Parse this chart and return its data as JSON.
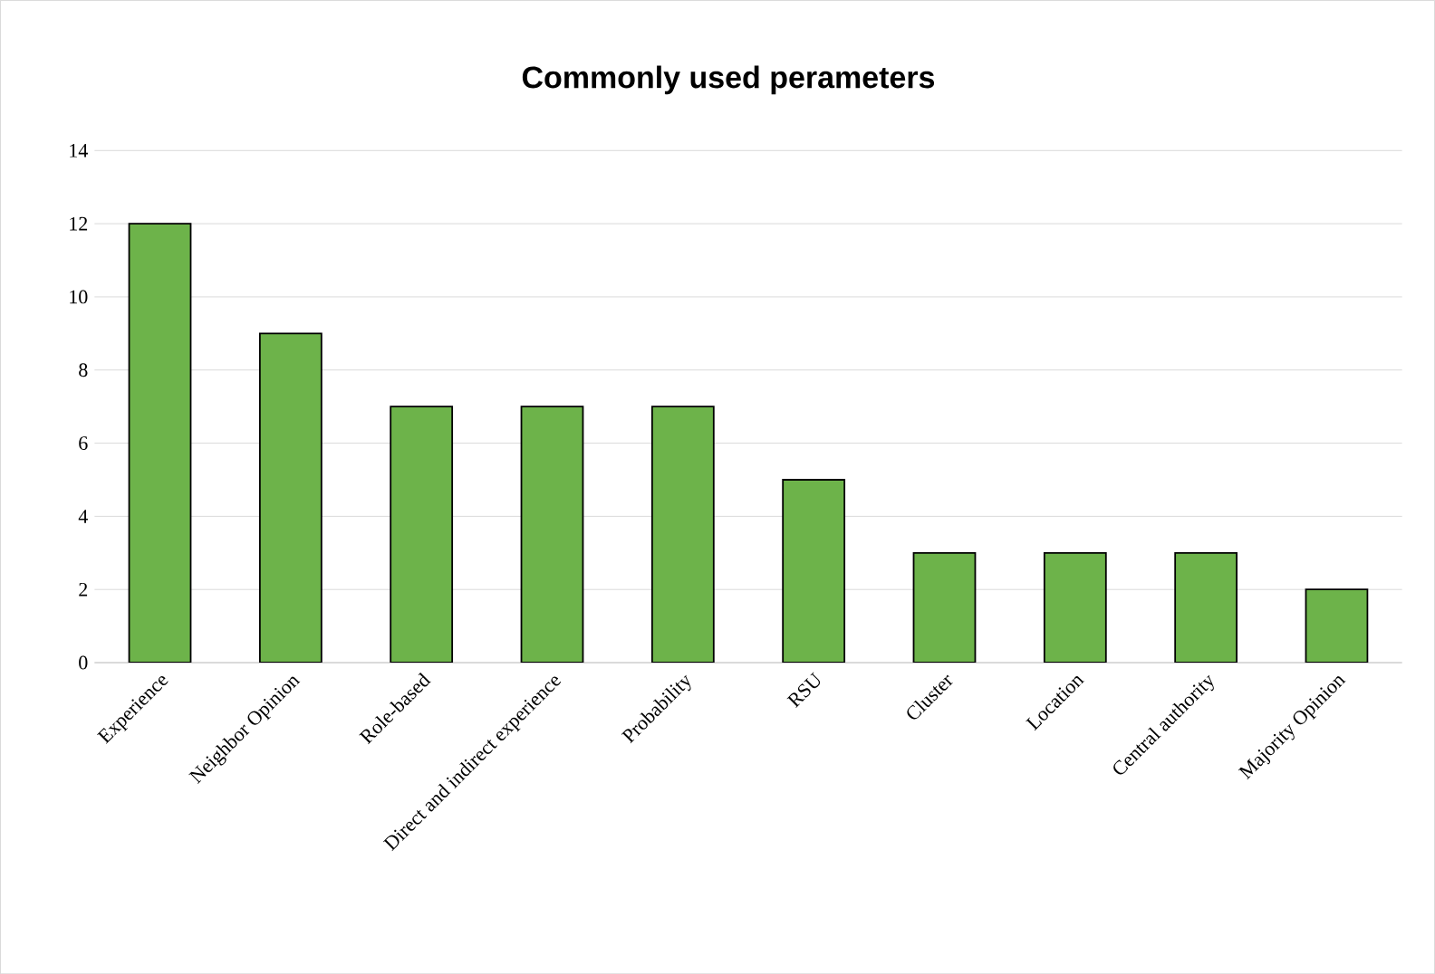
{
  "chart_data": {
    "type": "bar",
    "title": "Commonly used perameters",
    "categories": [
      "Experience",
      "Neighbor Opinion",
      "Role-based",
      "Direct and indirect experience",
      "Probability",
      "RSU",
      "Cluster",
      "Location",
      "Central authority",
      "Majority Opinion"
    ],
    "values": [
      12,
      9,
      7,
      7,
      7,
      5,
      3,
      3,
      3,
      2
    ],
    "color": "#6db34a",
    "ylim": [
      0,
      14
    ],
    "yticks": [
      0,
      2,
      4,
      6,
      8,
      10,
      12,
      14
    ],
    "grid": "y"
  }
}
